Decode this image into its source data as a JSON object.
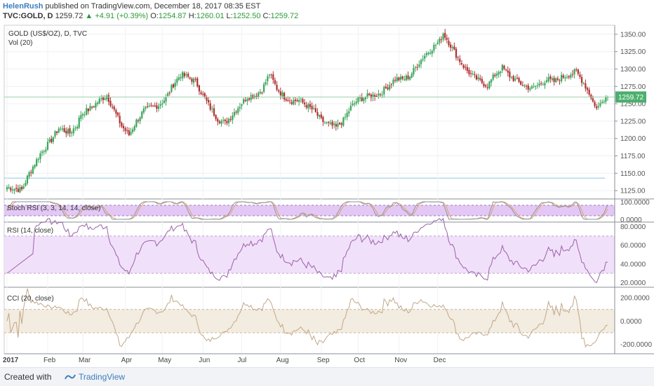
{
  "header": {
    "author": "HelenRush",
    "published": "published on TradingView.com, December 18, 2017 08:35 EST",
    "symbol": "TVC:GOLD, D",
    "last": "1259.72",
    "change": "▲ +4.91 (+0.39%)",
    "o_label": "O:",
    "o_value": "1254.87",
    "h_label": "H:",
    "h_value": "1260.01",
    "l_label": "L:",
    "l_value": "1252.50",
    "c_label": "C:",
    "c_value": "1259.72"
  },
  "footer": {
    "created_with": "Created with",
    "brand": "TradingView"
  },
  "colors": {
    "up": "#3aa55a",
    "down": "#b03030",
    "stoch_band": "#e3c8f5",
    "rsi_band": "#f1e0fa",
    "cci_band": "#f3ece0",
    "price_tag": "#4caf6e"
  },
  "chart_data": [
    {
      "type": "candlestick",
      "title": "GOLD (US$/OZ), D, TVC",
      "volume_label": "Vol (20)",
      "y_ticks": [
        "1125.00",
        "1150.00",
        "1175.00",
        "1200.00",
        "1225.00",
        "1250.00",
        "1275.00",
        "1300.00",
        "1325.00",
        "1350.00"
      ],
      "ylim": [
        1113,
        1363
      ],
      "last_price_tag": "1259.72",
      "x_labels": [
        "2017",
        "Feb",
        "Mar",
        "Apr",
        "May",
        "Jun",
        "Jul",
        "Aug",
        "Sep",
        "Oct",
        "Nov",
        "Dec"
      ],
      "anchors": [
        [
          0,
          1130
        ],
        [
          8,
          1126
        ],
        [
          12,
          1150
        ],
        [
          18,
          1178
        ],
        [
          24,
          1198
        ],
        [
          28,
          1215
        ],
        [
          34,
          1208
        ],
        [
          38,
          1220
        ],
        [
          40,
          1235
        ],
        [
          46,
          1245
        ],
        [
          50,
          1255
        ],
        [
          54,
          1262
        ],
        [
          58,
          1240
        ],
        [
          62,
          1218
        ],
        [
          66,
          1205
        ],
        [
          70,
          1225
        ],
        [
          74,
          1240
        ],
        [
          78,
          1245
        ],
        [
          82,
          1248
        ],
        [
          86,
          1258
        ],
        [
          90,
          1278
        ],
        [
          94,
          1292
        ],
        [
          98,
          1288
        ],
        [
          102,
          1282
        ],
        [
          106,
          1262
        ],
        [
          110,
          1244
        ],
        [
          114,
          1228
        ],
        [
          118,
          1222
        ],
        [
          122,
          1235
        ],
        [
          126,
          1248
        ],
        [
          130,
          1260
        ],
        [
          134,
          1262
        ],
        [
          138,
          1270
        ],
        [
          142,
          1293
        ],
        [
          146,
          1272
        ],
        [
          150,
          1260
        ],
        [
          154,
          1254
        ],
        [
          158,
          1255
        ],
        [
          162,
          1248
        ],
        [
          166,
          1240
        ],
        [
          170,
          1226
        ],
        [
          174,
          1220
        ],
        [
          178,
          1216
        ],
        [
          182,
          1226
        ],
        [
          186,
          1245
        ],
        [
          190,
          1256
        ],
        [
          194,
          1260
        ],
        [
          198,
          1262
        ],
        [
          202,
          1265
        ],
        [
          206,
          1275
        ],
        [
          210,
          1286
        ],
        [
          214,
          1285
        ],
        [
          218,
          1290
        ],
        [
          222,
          1306
        ],
        [
          226,
          1320
        ],
        [
          230,
          1330
        ],
        [
          234,
          1340
        ],
        [
          236,
          1352
        ],
        [
          240,
          1334
        ],
        [
          244,
          1316
        ],
        [
          248,
          1300
        ],
        [
          252,
          1290
        ],
        [
          256,
          1282
        ],
        [
          260,
          1276
        ],
        [
          264,
          1292
        ],
        [
          268,
          1302
        ],
        [
          272,
          1290
        ],
        [
          276,
          1282
        ],
        [
          280,
          1276
        ],
        [
          284,
          1272
        ],
        [
          288,
          1278
        ],
        [
          292,
          1285
        ],
        [
          296,
          1282
        ],
        [
          300,
          1288
        ],
        [
          304,
          1292
        ],
        [
          308,
          1296
        ],
        [
          312,
          1280
        ],
        [
          316,
          1260
        ],
        [
          318,
          1246
        ],
        [
          320,
          1246
        ],
        [
          324,
          1260
        ]
      ]
    },
    {
      "type": "line",
      "title": "Stoch RSI (3, 3, 14, 14, close)",
      "y_ticks": [
        "100.0000",
        "0.0000"
      ],
      "ylim": [
        0,
        100
      ]
    },
    {
      "type": "line",
      "title": "RSI (14, close)",
      "y_ticks": [
        "80.0000",
        "60.0000",
        "40.0000",
        "20.0000"
      ],
      "ylim": [
        15,
        85
      ]
    },
    {
      "type": "line",
      "title": "CCI (20, close)",
      "y_ticks": [
        "200.0000",
        "0.0000",
        "-200.0000"
      ],
      "ylim": [
        -280,
        290
      ]
    }
  ]
}
